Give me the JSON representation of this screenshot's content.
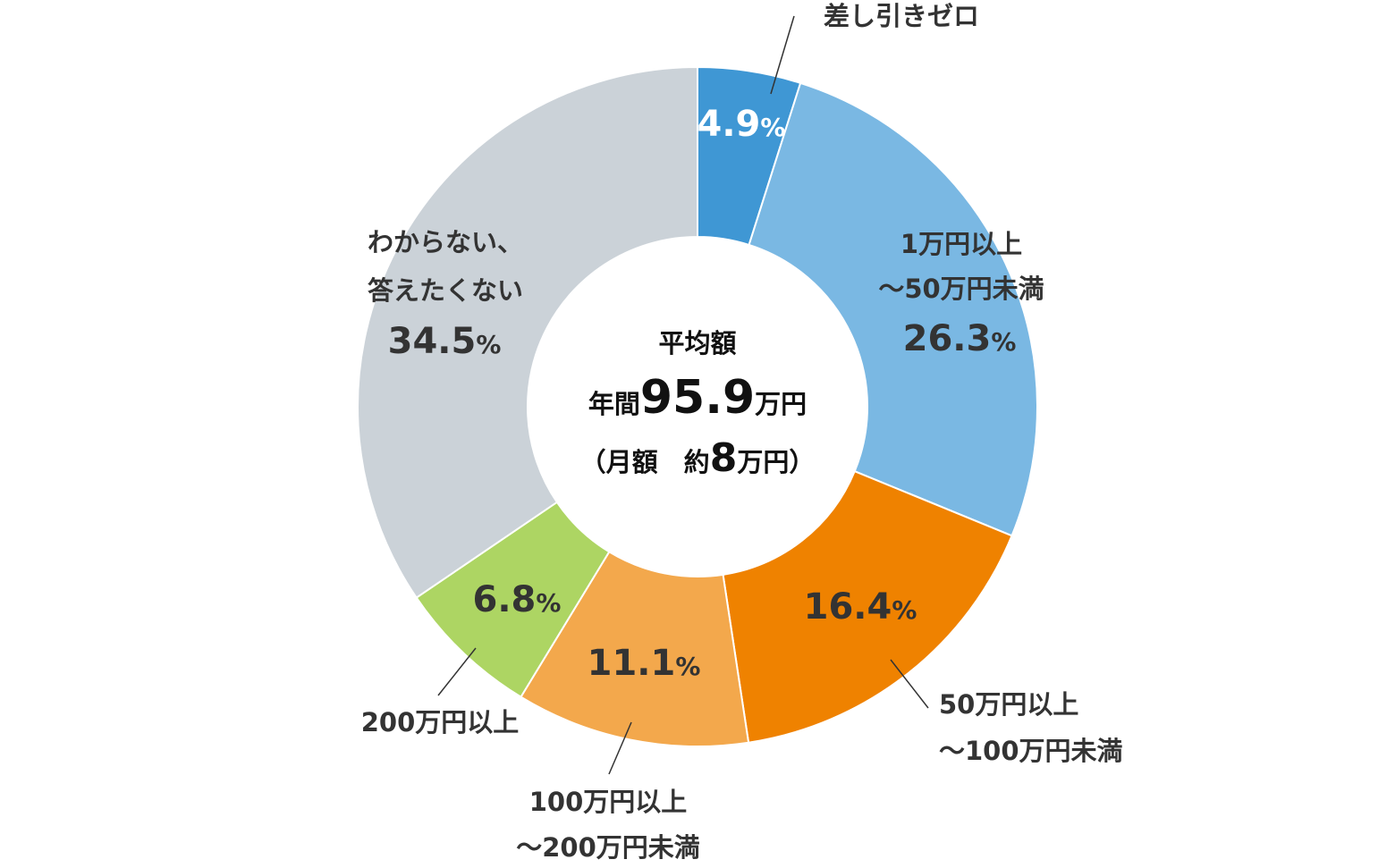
{
  "chart_data": {
    "type": "pie",
    "donut": true,
    "series": [
      {
        "label_lines": [
          "差し引きゼロ"
        ],
        "value": 4.9,
        "pct_text": "4.9",
        "color": "#3f97d4"
      },
      {
        "label_lines": [
          "1万円以上",
          "～50万円未満"
        ],
        "value": 26.3,
        "pct_text": "26.3",
        "color": "#7ab8e3"
      },
      {
        "label_lines": [
          "50万円以上",
          "～100万円未満"
        ],
        "value": 16.4,
        "pct_text": "16.4",
        "color": "#ef8200"
      },
      {
        "label_lines": [
          "100万円以上",
          "～200万円未満"
        ],
        "value": 11.1,
        "pct_text": "11.1",
        "color": "#f3a84c"
      },
      {
        "label_lines": [
          "200万円以上"
        ],
        "value": 6.8,
        "pct_text": "6.8",
        "color": "#add563"
      },
      {
        "label_lines": [
          "わからない、",
          "答えたくない"
        ],
        "value": 34.5,
        "pct_text": "34.5",
        "color": "#cbd2d8"
      }
    ],
    "percent_symbol": "%",
    "center": {
      "line1": "平均額",
      "line2_prefix": "年間",
      "line2_value": "95.9",
      "line2_suffix": "万円",
      "line3_prefix": "（月額　約",
      "line3_value": "8",
      "line3_suffix": "万円）"
    }
  }
}
